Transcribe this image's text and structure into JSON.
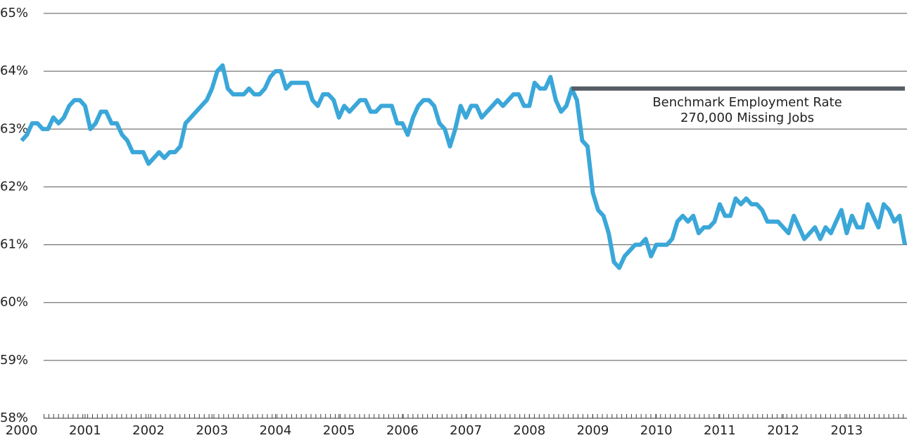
{
  "chart_data": {
    "type": "line",
    "x": [
      2000,
      2000.083,
      2000.167,
      2000.25,
      2000.333,
      2000.417,
      2000.5,
      2000.583,
      2000.667,
      2000.75,
      2000.833,
      2000.917,
      2001,
      2001.083,
      2001.167,
      2001.25,
      2001.333,
      2001.417,
      2001.5,
      2001.583,
      2001.667,
      2001.75,
      2001.833,
      2001.917,
      2002,
      2002.083,
      2002.167,
      2002.25,
      2002.333,
      2002.417,
      2002.5,
      2002.583,
      2002.667,
      2002.75,
      2002.833,
      2002.917,
      2003,
      2003.083,
      2003.167,
      2003.25,
      2003.333,
      2003.417,
      2003.5,
      2003.583,
      2003.667,
      2003.75,
      2003.833,
      2003.917,
      2004,
      2004.083,
      2004.167,
      2004.25,
      2004.333,
      2004.417,
      2004.5,
      2004.583,
      2004.667,
      2004.75,
      2004.833,
      2004.917,
      2005,
      2005.083,
      2005.167,
      2005.25,
      2005.333,
      2005.417,
      2005.5,
      2005.583,
      2005.667,
      2005.75,
      2005.833,
      2005.917,
      2006,
      2006.083,
      2006.167,
      2006.25,
      2006.333,
      2006.417,
      2006.5,
      2006.583,
      2006.667,
      2006.75,
      2006.833,
      2006.917,
      2007,
      2007.083,
      2007.167,
      2007.25,
      2007.333,
      2007.417,
      2007.5,
      2007.583,
      2007.667,
      2007.75,
      2007.833,
      2007.917,
      2008,
      2008.083,
      2008.167,
      2008.25,
      2008.333,
      2008.417,
      2008.5,
      2008.583,
      2008.667,
      2008.75,
      2008.833,
      2008.917,
      2009,
      2009.083,
      2009.167,
      2009.25,
      2009.333,
      2009.417,
      2009.5,
      2009.583,
      2009.667,
      2009.75,
      2009.833,
      2009.917,
      2010,
      2010.083,
      2010.167,
      2010.25,
      2010.333,
      2010.417,
      2010.5,
      2010.583,
      2010.667,
      2010.75,
      2010.833,
      2010.917,
      2011,
      2011.083,
      2011.167,
      2011.25,
      2011.333,
      2011.417,
      2011.5,
      2011.583,
      2011.667,
      2011.75,
      2011.833,
      2011.917,
      2012,
      2012.083,
      2012.167,
      2012.25,
      2012.333,
      2012.417,
      2012.5,
      2012.583,
      2012.667,
      2012.75,
      2012.833,
      2012.917,
      2013,
      2013.083,
      2013.167,
      2013.25,
      2013.333,
      2013.417,
      2013.5,
      2013.583,
      2013.667,
      2013.75,
      2013.833,
      2013.917
    ],
    "series": [
      {
        "color": "#3ba7d9",
        "values": [
          62.8,
          62.9,
          63.1,
          63.1,
          63.0,
          63.0,
          63.2,
          63.1,
          63.2,
          63.4,
          63.5,
          63.5,
          63.4,
          63.0,
          63.1,
          63.3,
          63.3,
          63.1,
          63.1,
          62.9,
          62.8,
          62.6,
          62.6,
          62.6,
          62.4,
          62.5,
          62.6,
          62.5,
          62.6,
          62.6,
          62.7,
          63.1,
          63.2,
          63.3,
          63.4,
          63.5,
          63.7,
          64.0,
          64.1,
          63.7,
          63.6,
          63.6,
          63.6,
          63.7,
          63.6,
          63.6,
          63.7,
          63.9,
          64.0,
          64.0,
          63.7,
          63.8,
          63.8,
          63.8,
          63.8,
          63.5,
          63.4,
          63.6,
          63.6,
          63.5,
          63.2,
          63.4,
          63.3,
          63.4,
          63.5,
          63.5,
          63.3,
          63.3,
          63.4,
          63.4,
          63.4,
          63.1,
          63.1,
          62.9,
          63.2,
          63.4,
          63.5,
          63.5,
          63.4,
          63.1,
          63.0,
          62.7,
          63.0,
          63.4,
          63.2,
          63.4,
          63.4,
          63.2,
          63.3,
          63.4,
          63.5,
          63.4,
          63.5,
          63.6,
          63.6,
          63.4,
          63.4,
          63.8,
          63.7,
          63.7,
          63.9,
          63.5,
          63.3,
          63.4,
          63.7,
          63.5,
          62.8,
          62.7,
          61.9,
          61.6,
          61.5,
          61.2,
          60.7,
          60.6,
          60.8,
          60.9,
          61.0,
          61.0,
          61.1,
          60.8,
          61.0,
          61.0,
          61.0,
          61.1,
          61.4,
          61.5,
          61.4,
          61.5,
          61.2,
          61.3,
          61.3,
          61.4,
          61.7,
          61.5,
          61.5,
          61.8,
          61.7,
          61.8,
          61.7,
          61.7,
          61.6,
          61.4,
          61.4,
          61.4,
          61.3,
          61.2,
          61.5,
          61.3,
          61.1,
          61.2,
          61.3,
          61.1,
          61.3,
          61.2,
          61.4,
          61.6,
          61.2,
          61.5,
          61.3,
          61.3,
          61.7,
          61.5,
          61.3,
          61.7,
          61.6,
          61.4,
          61.5,
          61.0
        ]
      },
      {
        "name": "Benchmark Employment Rate",
        "color": "#555c63",
        "x": [
          2008.667,
          2013.917
        ],
        "values": [
          63.7,
          63.7
        ]
      }
    ],
    "annotations": [
      "270,000 Missing Jobs"
    ],
    "xlim": [
      1999.66,
      2013.95
    ],
    "xticks": [
      2000,
      2001,
      2002,
      2003,
      2004,
      2005,
      2006,
      2007,
      2008,
      2009,
      2010,
      2011,
      2012,
      2013
    ],
    "ylim": [
      58,
      65
    ],
    "yticks": [
      {
        "value": 58,
        "label": "58%"
      },
      {
        "value": 59,
        "label": "59%"
      },
      {
        "value": 60,
        "label": "60%"
      },
      {
        "value": 61,
        "label": "61%"
      },
      {
        "value": 62,
        "label": "62%"
      },
      {
        "value": 63,
        "label": "63%"
      },
      {
        "value": 64,
        "label": "64%"
      },
      {
        "value": 65,
        "label": "65%"
      }
    ],
    "grid": true
  }
}
